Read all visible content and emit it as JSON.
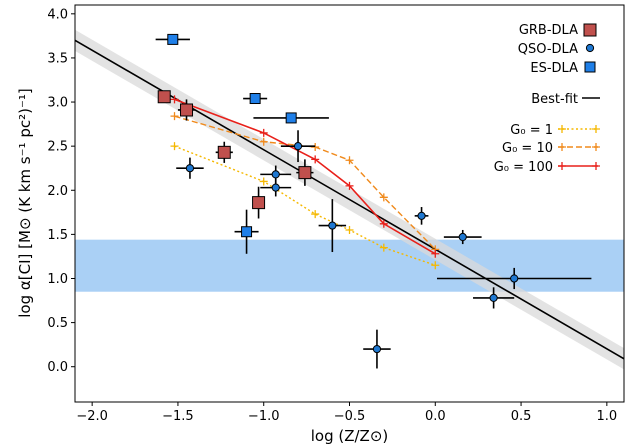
{
  "chart_data": {
    "type": "scatter",
    "title": "",
    "xlabel": "log (Z/Z⊙)",
    "ylabel": "log α[CI] [M⊙ (K km s⁻¹ pc²)⁻¹]",
    "xlim": [
      -2.1,
      1.1
    ],
    "ylim": [
      -0.4,
      4.1
    ],
    "x_ticks": [
      "−2.0",
      "−1.5",
      "−1.0",
      "−0.5",
      "0.0",
      "0.5",
      "1.0"
    ],
    "y_ticks": [
      "0.0",
      "0.5",
      "1.0",
      "1.5",
      "2.0",
      "2.5",
      "3.0",
      "3.5",
      "4.0"
    ],
    "legend_placement": "top-right",
    "grid": false,
    "colors": {
      "grb": "#c0504d",
      "qso": "#1f78d1",
      "es": "#1f7fe8",
      "band": "#aad0f5",
      "best_fit_band": "#d9d9d9",
      "g1": "#f5b800",
      "g10": "#f08a1c",
      "g100": "#e8201a"
    },
    "legend": {
      "grb": "GRB-DLA",
      "qso": "QSO-DLA",
      "es": "ES-DLA",
      "best_fit": "Best-fit",
      "g1": "G₀ = 1",
      "g10": "G₀ = 10",
      "g100": "G₀ = 100"
    },
    "grb_dla": [
      {
        "x": -1.58,
        "y": 3.06,
        "xerr": 0.03,
        "yerr": 0.05
      },
      {
        "x": -1.45,
        "y": 2.91,
        "xerr": 0.05,
        "yerr": 0.12
      },
      {
        "x": -1.23,
        "y": 2.43,
        "xerr": 0.05,
        "yerr": 0.12
      },
      {
        "x": -1.03,
        "y": 1.86,
        "xerr": 0.03,
        "yerr": 0.18
      },
      {
        "x": -0.76,
        "y": 2.2,
        "xerr": 0.05,
        "yerr": 0.15
      }
    ],
    "qso_dla": [
      {
        "x": -1.43,
        "y": 2.25,
        "xerr": 0.08,
        "yerr": 0.12
      },
      {
        "x": -0.93,
        "y": 2.18,
        "xerr": 0.09,
        "yerr": 0.1
      },
      {
        "x": -0.93,
        "y": 2.03,
        "xerr": 0.09,
        "yerr": 0.1
      },
      {
        "x": -0.8,
        "y": 2.5,
        "xerr": 0.1,
        "yerr": 0.18
      },
      {
        "x": -0.6,
        "y": 1.6,
        "xerr": 0.08,
        "yerr": 0.3
      },
      {
        "x": -0.34,
        "y": 0.2,
        "xerr": 0.08,
        "yerr": 0.22
      },
      {
        "x": -0.08,
        "y": 1.71,
        "xerr": 0.04,
        "yerr": 0.1
      },
      {
        "x": 0.16,
        "y": 1.47,
        "xerr": 0.11,
        "yerr": 0.08
      },
      {
        "x": 0.34,
        "y": 0.78,
        "xerr": 0.12,
        "yerr": 0.12
      },
      {
        "x": 0.46,
        "y": 1.0,
        "xerr": 0.45,
        "yerr": 0.12
      }
    ],
    "es_dla": [
      {
        "x": -1.53,
        "y": 3.71,
        "xerr": 0.1,
        "yerr": 0.0
      },
      {
        "x": -1.05,
        "y": 3.04,
        "xerr": 0.07,
        "yerr": 0.06
      },
      {
        "x": -0.84,
        "y": 2.82,
        "xerr": 0.22,
        "yerr": 0.0
      },
      {
        "x": -1.1,
        "y": 1.53,
        "xerr": 0.07,
        "yerr": 0.25
      }
    ],
    "best_fit_line": {
      "x": [
        -2.1,
        1.1
      ],
      "y": [
        3.7,
        0.09
      ],
      "band_halfwidth": 0.12
    },
    "shaded_band": {
      "y": [
        0.85,
        1.44
      ]
    },
    "g0_series": [
      {
        "key": "g1",
        "style": "dotted",
        "x": [
          -1.52,
          -1.0,
          -0.7,
          -0.5,
          -0.3,
          0.0
        ],
        "y": [
          2.5,
          2.1,
          1.73,
          1.55,
          1.35,
          1.15
        ]
      },
      {
        "key": "g10",
        "style": "dashed",
        "x": [
          -1.52,
          -1.0,
          -0.7,
          -0.5,
          -0.3,
          0.0
        ],
        "y": [
          2.84,
          2.55,
          2.49,
          2.34,
          1.92,
          1.33
        ]
      },
      {
        "key": "g100",
        "style": "solid",
        "x": [
          -1.52,
          -1.0,
          -0.7,
          -0.5,
          -0.3,
          0.0
        ],
        "y": [
          3.03,
          2.65,
          2.35,
          2.05,
          1.62,
          1.28
        ]
      }
    ]
  }
}
